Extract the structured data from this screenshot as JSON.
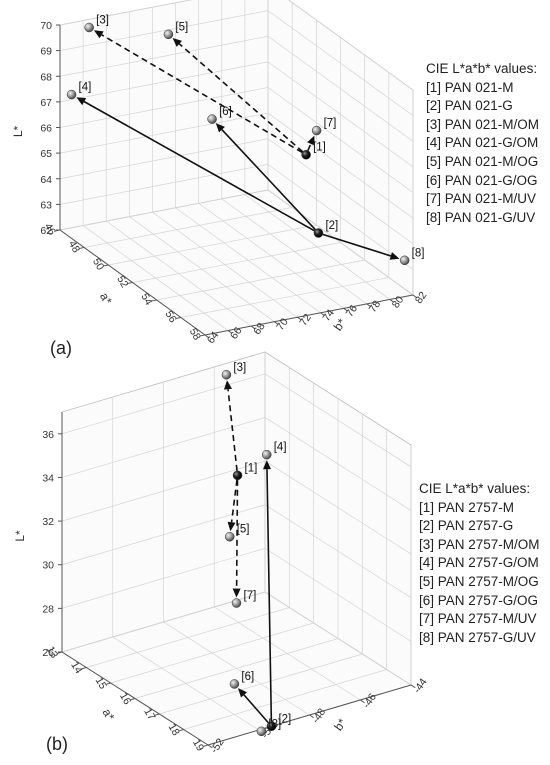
{
  "chart_data": [
    {
      "type": "scatter",
      "panel_label": "(a)",
      "axes": {
        "a": {
          "label": "a*",
          "range": [
            46,
            58
          ],
          "ticks": [
            "46",
            "48",
            "50",
            "52",
            "54",
            "56",
            "58"
          ]
        },
        "b": {
          "label": "b*",
          "range": [
            64,
            82
          ],
          "ticks": [
            "64",
            "66",
            "68",
            "70",
            "72",
            "74",
            "76",
            "78",
            "80",
            "82"
          ]
        },
        "L": {
          "label": "L*",
          "range": [
            62,
            70
          ],
          "ticks": [
            "62",
            "63",
            "64",
            "65",
            "66",
            "67",
            "68",
            "69",
            "70"
          ]
        }
      },
      "grid": true,
      "legend": {
        "title": "CIE L*a*b* values:",
        "position": "right",
        "entries": [
          "[1] PAN 021-M",
          "[2] PAN 021-G",
          "[3] PAN 021-M/OM",
          "[4] PAN 021-G/OM",
          "[5] PAN 021-M/OG",
          "[6] PAN 021-G/OG",
          "[7] PAN 021-M/UV",
          "[8] PAN 021-G/UV"
        ]
      },
      "points": [
        {
          "label": "[1]",
          "a": 52.5,
          "b": 78.5,
          "L": 65.9,
          "origin": true
        },
        {
          "label": "[2]",
          "a": 54.0,
          "b": 78.0,
          "L": 63.4,
          "origin": true
        },
        {
          "label": "[3]",
          "a": 46.5,
          "b": 66.0,
          "L": 69.9
        },
        {
          "label": "[4]",
          "a": 46.0,
          "b": 65.0,
          "L": 67.2
        },
        {
          "label": "[5]",
          "a": 47.8,
          "b": 71.5,
          "L": 69.6
        },
        {
          "label": "[6]",
          "a": 49.5,
          "b": 73.5,
          "L": 66.7
        },
        {
          "label": "[7]",
          "a": 50.5,
          "b": 81.5,
          "L": 65.9
        },
        {
          "label": "[8]",
          "a": 57.5,
          "b": 81.8,
          "L": 63.2
        }
      ],
      "arrows": [
        {
          "from": "[1]",
          "to": "[3]",
          "style": "dashed"
        },
        {
          "from": "[1]",
          "to": "[5]",
          "style": "dashed"
        },
        {
          "from": "[1]",
          "to": "[7]",
          "style": "dashed"
        },
        {
          "from": "[2]",
          "to": "[4]",
          "style": "solid"
        },
        {
          "from": "[2]",
          "to": "[6]",
          "style": "solid"
        },
        {
          "from": "[2]",
          "to": "[8]",
          "style": "solid"
        }
      ]
    },
    {
      "type": "scatter",
      "panel_label": "(b)",
      "axes": {
        "a": {
          "label": "a*",
          "range": [
            13,
            19
          ],
          "ticks": [
            "13",
            "14",
            "15",
            "16",
            "17",
            "18",
            "19"
          ]
        },
        "b": {
          "label": "b*",
          "range": [
            -52,
            -44
          ],
          "ticks": [
            "-52",
            "-50",
            "-48",
            "-46",
            "-44"
          ]
        },
        "L": {
          "label": "L*",
          "range": [
            26,
            37
          ],
          "ticks": [
            "26",
            "28",
            "30",
            "32",
            "34",
            "36"
          ]
        }
      },
      "grid": true,
      "legend": {
        "title": "CIE L*a*b* values:",
        "position": "right",
        "entries": [
          "[1] PAN 2757-M",
          "[2] PAN 2757-G",
          "[3] PAN 2757-M/OM",
          "[4] PAN 2757-G/OM",
          "[5] PAN 2757-M/OG",
          "[6] PAN 2757-G/OG",
          "[7] PAN 2757-M/UV",
          "[8] PAN 2757-G/UV"
        ]
      },
      "points": [
        {
          "label": "[1]",
          "a": 15.0,
          "b": -47.0,
          "L": 33.8,
          "origin": true
        },
        {
          "label": "[2]",
          "a": 19.0,
          "b": -49.5,
          "L": 26.0,
          "origin": true
        },
        {
          "label": "[3]",
          "a": 13.5,
          "b": -46.0,
          "L": 37.0
        },
        {
          "label": "[4]",
          "a": 16.2,
          "b": -47.0,
          "L": 35.6
        },
        {
          "label": "[5]",
          "a": 15.2,
          "b": -47.5,
          "L": 31.3
        },
        {
          "label": "[6]",
          "a": 18.0,
          "b": -50.0,
          "L": 27.4
        },
        {
          "label": "[7]",
          "a": 16.0,
          "b": -48.0,
          "L": 29.0
        },
        {
          "label": "[8]",
          "a": 18.9,
          "b": -49.8,
          "L": 25.8
        }
      ],
      "arrows": [
        {
          "from": "[1]",
          "to": "[3]",
          "style": "dashed"
        },
        {
          "from": "[1]",
          "to": "[5]",
          "style": "dashed"
        },
        {
          "from": "[1]",
          "to": "[7]",
          "style": "dashed"
        },
        {
          "from": "[2]",
          "to": "[4]",
          "style": "solid"
        },
        {
          "from": "[2]",
          "to": "[6]",
          "style": "solid"
        },
        {
          "from": "[2]",
          "to": "[8]",
          "style": "solid"
        }
      ]
    }
  ]
}
